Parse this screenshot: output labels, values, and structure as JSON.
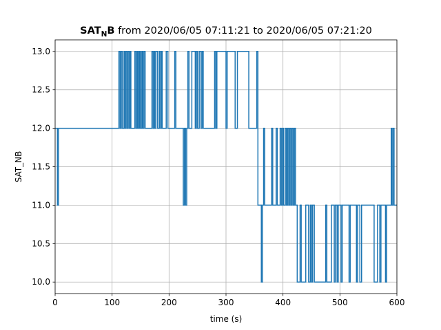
{
  "chart_data": {
    "type": "line",
    "step": true,
    "title": {
      "bold_main": "SAT",
      "bold_sub": "N",
      "bold_tail": "B",
      "rest": " from 2020/06/05 07:11:21 to 2020/06/05 07:21:20"
    },
    "xlabel": "time (s)",
    "ylabel": "SAT_NB",
    "xlim": [
      0,
      600
    ],
    "ylim": [
      9.85,
      13.15
    ],
    "xticks": [
      0,
      100,
      200,
      300,
      400,
      500,
      600
    ],
    "xtick_labels": [
      "0",
      "100",
      "200",
      "300",
      "400",
      "500",
      "600"
    ],
    "yticks": [
      10.0,
      10.5,
      11.0,
      11.5,
      12.0,
      12.5,
      13.0
    ],
    "ytick_labels": [
      "10.0",
      "10.5",
      "11.0",
      "11.5",
      "12.0",
      "12.5",
      "13.0"
    ],
    "grid": true,
    "series": [
      {
        "color": "#1f77b4",
        "x": [
          0,
          4,
          6,
          112,
          114,
          116,
          118,
          121,
          122,
          124,
          126,
          128,
          130,
          132,
          133,
          140,
          142,
          144,
          145,
          147,
          148,
          150,
          151,
          153,
          154,
          156,
          158,
          170,
          172,
          174,
          175,
          177,
          180,
          183,
          185,
          187,
          188,
          195,
          198,
          210,
          212,
          225,
          227,
          229,
          231,
          233,
          235,
          240,
          246,
          248,
          250,
          253,
          256,
          258,
          260,
          280,
          282,
          284,
          300,
          302,
          316,
          320,
          340,
          354,
          356,
          362,
          364,
          366,
          368,
          380,
          382,
          388,
          390,
          395,
          397,
          399,
          401,
          404,
          406,
          408,
          410,
          412,
          414,
          416,
          418,
          420,
          422,
          425,
          430,
          432,
          440,
          445,
          448,
          450,
          452,
          455,
          475,
          477,
          485,
          490,
          492,
          495,
          497,
          502,
          504,
          516,
          518,
          529,
          531,
          535,
          538,
          560,
          566,
          570,
          572,
          580,
          582,
          590,
          591,
          593,
          595,
          597,
          600
        ],
        "y": [
          12,
          11,
          12,
          13,
          12,
          13,
          12,
          13,
          12,
          13,
          12,
          13,
          12,
          13,
          12,
          13,
          12,
          13,
          12,
          13,
          12,
          13,
          12,
          13,
          12,
          13,
          12,
          13,
          12,
          13,
          12,
          13,
          12,
          13,
          12,
          13,
          12,
          13,
          12,
          13,
          12,
          11,
          12,
          11,
          12,
          13,
          12,
          13,
          12,
          13,
          12,
          13,
          12,
          13,
          12,
          13,
          12,
          13,
          12,
          13,
          12,
          13,
          12,
          13,
          11,
          10,
          11,
          12,
          11,
          12,
          11,
          12,
          11,
          12,
          11,
          12,
          11,
          12,
          11,
          12,
          11,
          12,
          11,
          12,
          11,
          12,
          11,
          10,
          11,
          10,
          11,
          10,
          11,
          10,
          11,
          10,
          11,
          10,
          11,
          10,
          11,
          10,
          11,
          10,
          11,
          10,
          11,
          10,
          11,
          10,
          11,
          10,
          11,
          10,
          11,
          10,
          11,
          12,
          11,
          12,
          11,
          11,
          11
        ]
      }
    ]
  }
}
